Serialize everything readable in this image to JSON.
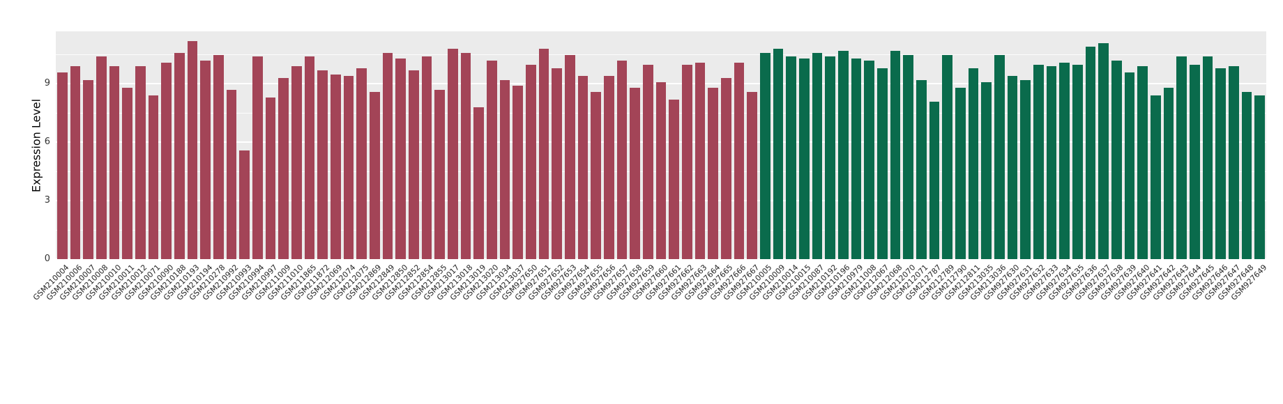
{
  "chart_data": {
    "type": "bar",
    "title": "",
    "xlabel": "",
    "ylabel": "Expression Level",
    "ylim": [
      0,
      11.7
    ],
    "yticks": [
      0,
      3,
      6,
      9
    ],
    "minor_gridlines": [
      1.5,
      4.5,
      7.5,
      10.5
    ],
    "grid": true,
    "legend": false,
    "panel_bg": "#ebebeb",
    "grid_color": "#ffffff",
    "series": [
      {
        "name": "red-group",
        "color": "#a34457",
        "labels": [
          "GSM210004",
          "GSM210006",
          "GSM210007",
          "GSM210008",
          "GSM210010",
          "GSM210011",
          "GSM210012",
          "GSM210071",
          "GSM210090",
          "GSM210188",
          "GSM210193",
          "GSM210194",
          "GSM210278",
          "GSM210992",
          "GSM210993",
          "GSM210994",
          "GSM210997",
          "GSM211009",
          "GSM211010",
          "GSM211865",
          "GSM211872",
          "GSM212069",
          "GSM212074",
          "GSM212075",
          "GSM212869",
          "GSM212849",
          "GSM212850",
          "GSM212852",
          "GSM212854",
          "GSM212855",
          "GSM213017",
          "GSM213018",
          "GSM213019",
          "GSM213020",
          "GSM213034",
          "GSM213037",
          "GSM927650",
          "GSM927651",
          "GSM927652",
          "GSM927653",
          "GSM927654",
          "GSM927655",
          "GSM927656",
          "GSM927657",
          "GSM927658",
          "GSM927659",
          "GSM927660",
          "GSM927661",
          "GSM927662",
          "GSM927663",
          "GSM927664",
          "GSM927665",
          "GSM927666",
          "GSM927667"
        ],
        "values": [
          9.6,
          9.9,
          9.2,
          10.4,
          9.9,
          8.8,
          9.9,
          8.4,
          10.1,
          10.6,
          11.2,
          10.2,
          10.5,
          8.7,
          5.6,
          10.4,
          8.3,
          9.3,
          9.9,
          10.4,
          9.7,
          9.5,
          9.4,
          9.8,
          8.6,
          10.6,
          10.3,
          9.7,
          10.4,
          8.7,
          10.8,
          10.6,
          7.8,
          10.2,
          9.2,
          8.9,
          10.0,
          10.8,
          9.8,
          10.5,
          9.4,
          8.6,
          9.4,
          10.2,
          8.8,
          10.0,
          9.1,
          8.2,
          10.0,
          10.1,
          8.8,
          9.3,
          10.1,
          8.6
        ]
      },
      {
        "name": "green-group",
        "color": "#0a6b4c",
        "labels": [
          "GSM210005",
          "GSM210009",
          "GSM210014",
          "GSM210015",
          "GSM210087",
          "GSM210192",
          "GSM210196",
          "GSM210979",
          "GSM211008",
          "GSM212067",
          "GSM212068",
          "GSM212070",
          "GSM212071",
          "GSM212787",
          "GSM212789",
          "GSM212790",
          "GSM212811",
          "GSM213035",
          "GSM213036",
          "GSM927630",
          "GSM927631",
          "GSM927632",
          "GSM927633",
          "GSM927634",
          "GSM927635",
          "GSM927636",
          "GSM927637",
          "GSM927638",
          "GSM927639",
          "GSM927640",
          "GSM927641",
          "GSM927642",
          "GSM927643",
          "GSM927644",
          "GSM927645",
          "GSM927646",
          "GSM927647",
          "GSM927648",
          "GSM927649"
        ],
        "values": [
          10.6,
          10.8,
          10.4,
          10.3,
          10.6,
          10.4,
          10.7,
          10.3,
          10.2,
          9.8,
          10.7,
          10.5,
          9.2,
          8.1,
          10.5,
          8.8,
          9.8,
          9.1,
          10.5,
          9.4,
          9.2,
          10.0,
          9.9,
          10.1,
          10.0,
          10.9,
          11.1,
          10.2,
          9.6,
          9.9,
          8.4,
          8.8,
          10.4,
          10.0,
          10.4,
          9.8,
          9.9,
          8.6,
          8.4
        ]
      }
    ]
  }
}
